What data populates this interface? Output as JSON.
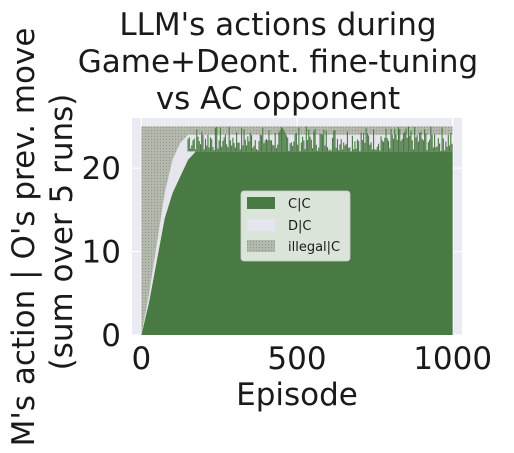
{
  "chart_data": {
    "type": "area",
    "title_lines": [
      "LLM's actions during",
      "Game+Deont. fine-tuning",
      "vs AC opponent"
    ],
    "xlabel": "Episode",
    "ylabel_lines": [
      "M's action | O's prev. move",
      "(sum over 5 runs)"
    ],
    "xlim": [
      -30,
      1030
    ],
    "ylim": [
      0,
      26
    ],
    "xticks": [
      0,
      500,
      1000
    ],
    "yticks": [
      0,
      10,
      20
    ],
    "x_tick_labels": [
      "0",
      "500",
      "1000"
    ],
    "y_tick_labels": [
      "0",
      "10",
      "20"
    ],
    "grid": true,
    "legend_position": "center",
    "total_per_episode": 25,
    "series": [
      {
        "name": "C|C",
        "color": "#4a7a43",
        "x": [
          0,
          25,
          50,
          75,
          100,
          125,
          150,
          175,
          200,
          250,
          300,
          350,
          400,
          450,
          500,
          550,
          600,
          650,
          700,
          750,
          800,
          850,
          900,
          950,
          1000
        ],
        "values": [
          0,
          4,
          9,
          14,
          17,
          19,
          21,
          22,
          22,
          22,
          22,
          22,
          22,
          22,
          22,
          22,
          22,
          22,
          22,
          22,
          22,
          22,
          22,
          22,
          22
        ]
      },
      {
        "name": "D|C",
        "color": "#e6e4ec",
        "x": [
          0,
          25,
          50,
          75,
          100,
          125,
          150,
          175,
          200,
          250,
          300,
          350,
          400,
          450,
          500,
          550,
          600,
          650,
          700,
          750,
          800,
          850,
          900,
          950,
          1000
        ],
        "values": [
          0,
          1,
          2,
          3,
          4,
          4,
          3,
          2,
          2,
          2,
          2,
          2,
          2,
          2,
          2,
          2,
          2,
          2,
          2,
          2,
          2,
          2,
          2,
          2,
          2
        ]
      },
      {
        "name": "illegal|C",
        "color": "#b3b9ad",
        "x": [
          0,
          25,
          50,
          75,
          100,
          125,
          150,
          175,
          200,
          250,
          300,
          350,
          400,
          450,
          500,
          550,
          600,
          650,
          700,
          750,
          800,
          850,
          900,
          950,
          1000
        ],
        "values": [
          25,
          20,
          14,
          8,
          4,
          2,
          1,
          1,
          1,
          1,
          1,
          1,
          1,
          1,
          1,
          1,
          1,
          1,
          1,
          1,
          1,
          1,
          1,
          1,
          1
        ]
      }
    ]
  }
}
